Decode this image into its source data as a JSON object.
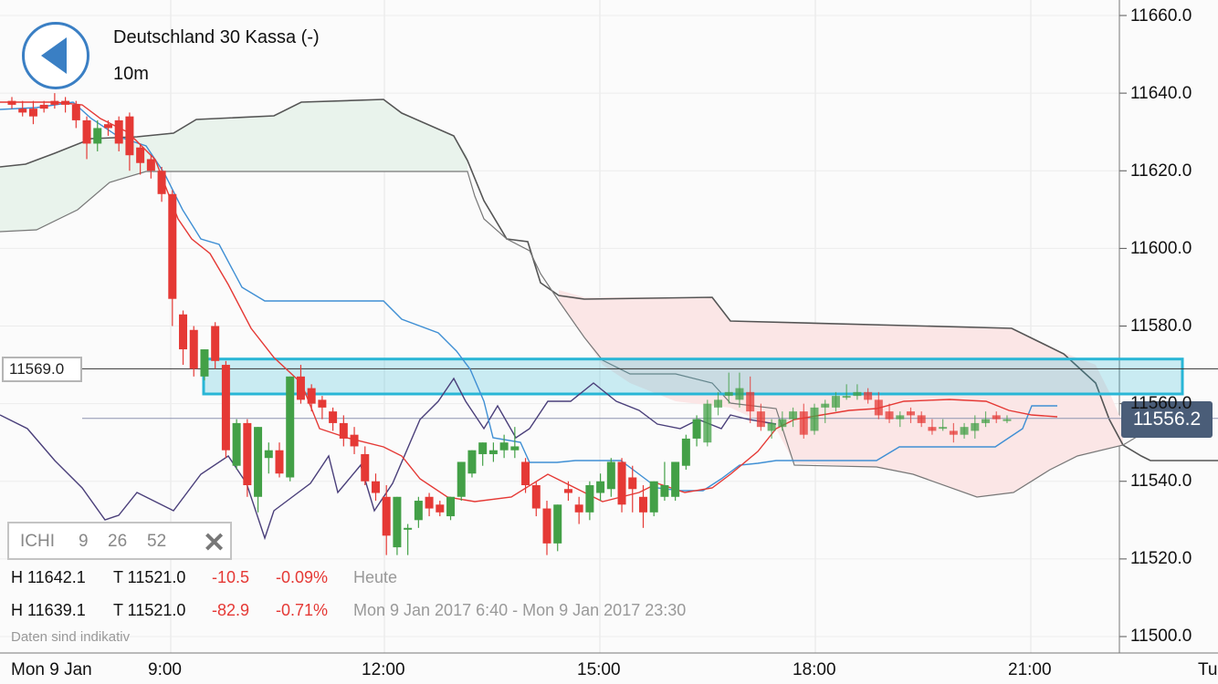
{
  "header": {
    "title": "Deutschland 30 Kassa (-)",
    "timeframe": "10m"
  },
  "indicator": {
    "name": "ICHI",
    "p1": "9",
    "p2": "26",
    "p3": "52"
  },
  "stats": [
    {
      "h": "H 11642.1",
      "t": "T 11521.0",
      "chg": "-10.5",
      "pct": "-0.09%",
      "period": "Heute"
    },
    {
      "h": "H 11639.1",
      "t": "T 11521.0",
      "chg": "-82.9",
      "pct": "-0.71%",
      "period": "Mon 9 Jan 2017 6:40 - Mon 9 Jan 2017 23:30"
    }
  ],
  "note": "Daten sind indikativ",
  "price_tags": {
    "left": "11569.0",
    "right": "11556.2"
  },
  "colors": {
    "up": "#43a047",
    "down": "#e53935",
    "tenkan": "#e53935",
    "kijun": "#3f8fd4",
    "chikou": "#4a3f7a",
    "span": "#555555",
    "zone": "#29b6d6",
    "cloud_bull": "#e9f3ec",
    "cloud_bear": "#fbe6e6"
  },
  "chart_data": {
    "type": "candlestick",
    "symbol": "Deutschland 30 Kassa (-)",
    "interval": "10m",
    "y_axis": {
      "ticks": [
        "11660.0",
        "11640.0",
        "11620.0",
        "11600.0",
        "11580.0",
        "11560.0",
        "11540.0",
        "11520.0",
        "11500.0"
      ],
      "ylim": [
        11497,
        11663
      ]
    },
    "x_axis": {
      "labels": [
        "Mon 9 Jan",
        "9:00",
        "12:00",
        "15:00",
        "18:00",
        "21:00",
        "Tu"
      ]
    },
    "horizontal_lines": [
      {
        "value": 11569.0
      },
      {
        "value": 11556.2
      }
    ],
    "zone": {
      "from": 11562.5,
      "to": 11571.5
    },
    "candles": [
      [
        11638,
        11639,
        11636,
        11637
      ],
      [
        11636,
        11638,
        11634,
        11635
      ],
      [
        11636,
        11638,
        11632,
        11634
      ],
      [
        11637,
        11638,
        11635,
        11636
      ],
      [
        11638,
        11640,
        11636,
        11637
      ],
      [
        11638,
        11639,
        11635,
        11637
      ],
      [
        11637,
        11638,
        11631,
        11633
      ],
      [
        11633,
        11634,
        11623,
        11627
      ],
      [
        11627,
        11633,
        11625,
        11631
      ],
      [
        11632,
        11633,
        11629,
        11631
      ],
      [
        11633,
        11634,
        11625,
        11627
      ],
      [
        11634,
        11635,
        11620,
        11624
      ],
      [
        11626,
        11627,
        11619,
        11622
      ],
      [
        11623,
        11624,
        11618,
        11620
      ],
      [
        11620,
        11621,
        11612,
        11614
      ],
      [
        11614,
        11615,
        11580,
        11587
      ],
      [
        11583,
        11584,
        11570,
        11574
      ],
      [
        11579,
        11580,
        11567,
        11569
      ],
      [
        11567,
        11574,
        11566,
        11574
      ],
      [
        11580,
        11581,
        11569,
        11571
      ],
      [
        11570,
        11571,
        11546,
        11548
      ],
      [
        11544,
        11556,
        11543,
        11555
      ],
      [
        11555,
        11556,
        11536,
        11539
      ],
      [
        11536,
        11554,
        11532,
        11554
      ],
      [
        11546,
        11550,
        11542,
        11548
      ],
      [
        11548,
        11550,
        11541,
        11542
      ],
      [
        11541,
        11567,
        11540,
        11567
      ],
      [
        11567,
        11570,
        11560,
        11561
      ],
      [
        11564,
        11565,
        11558,
        11560
      ],
      [
        11561,
        11562,
        11556,
        11559
      ],
      [
        11558,
        11559,
        11553,
        11555
      ],
      [
        11555,
        11557,
        11549,
        11551
      ],
      [
        11552,
        11554,
        11547,
        11549
      ],
      [
        11547,
        11549,
        11539,
        11540
      ],
      [
        11540,
        11542,
        11535,
        11537
      ],
      [
        11536,
        11539,
        11521,
        11526
      ],
      [
        11523,
        11536,
        11521,
        11536
      ],
      [
        11528,
        11529,
        11521,
        11528
      ],
      [
        11530,
        11536,
        11528,
        11535
      ],
      [
        11536,
        11537,
        11531,
        11533
      ],
      [
        11534,
        11535,
        11531,
        11532
      ],
      [
        11531,
        11536,
        11530,
        11536
      ],
      [
        11536,
        11545,
        11535,
        11545
      ],
      [
        11542,
        11548,
        11541,
        11548
      ],
      [
        11547,
        11550,
        11544,
        11550
      ],
      [
        11547,
        11550,
        11545,
        11548
      ],
      [
        11548,
        11552,
        11546,
        11550
      ],
      [
        11548,
        11554,
        11546,
        11549
      ],
      [
        11545,
        11546,
        11537,
        11539
      ],
      [
        11539,
        11540,
        11531,
        11533
      ],
      [
        11533,
        11535,
        11521,
        11524
      ],
      [
        11524,
        11534,
        11522,
        11534
      ],
      [
        11538,
        11540,
        11535,
        11537
      ],
      [
        11534,
        11536,
        11529,
        11532
      ],
      [
        11532,
        11540,
        11530,
        11539
      ],
      [
        11537,
        11542,
        11535,
        11540
      ],
      [
        11538,
        11546,
        11536,
        11545
      ],
      [
        11545,
        11546,
        11532,
        11534
      ],
      [
        11541,
        11544,
        11532,
        11538
      ],
      [
        11536,
        11539,
        11528,
        11532
      ],
      [
        11532,
        11540,
        11531,
        11540
      ],
      [
        11536,
        11545,
        11535,
        11539
      ],
      [
        11536,
        11545,
        11535,
        11545
      ],
      [
        11544,
        11552,
        11543,
        11551
      ],
      [
        11551,
        11557,
        11549,
        11556
      ],
      [
        11550,
        11561,
        11549,
        11560
      ],
      [
        11559,
        11563,
        11557,
        11561
      ],
      [
        11562,
        11568,
        11560,
        11563
      ],
      [
        11561,
        11568,
        11559,
        11564
      ],
      [
        11563,
        11567,
        11555,
        11558
      ],
      [
        11558,
        11560,
        11553,
        11554
      ],
      [
        11553,
        11556,
        11551,
        11555
      ],
      [
        11554,
        11558,
        11553,
        11556
      ],
      [
        11556,
        11559,
        11554,
        11558
      ],
      [
        11558,
        11560,
        11551,
        11552
      ],
      [
        11553,
        11560,
        11552,
        11559
      ],
      [
        11559,
        11561,
        11555,
        11560
      ],
      [
        11559,
        11563,
        11558,
        11562
      ],
      [
        11562,
        11565,
        11561,
        11562
      ],
      [
        11562,
        11565,
        11561,
        11563
      ],
      [
        11563,
        11564,
        11560,
        11561
      ],
      [
        11561,
        11563,
        11556,
        11557
      ],
      [
        11558,
        11560,
        11555,
        11556
      ],
      [
        11556,
        11558,
        11554,
        11557
      ],
      [
        11558,
        11559,
        11555,
        11557
      ],
      [
        11557,
        11558,
        11554,
        11555
      ],
      [
        11554,
        11556,
        11552,
        11553
      ],
      [
        11554,
        11556,
        11553,
        11554
      ],
      [
        11553,
        11555,
        11550,
        11552
      ],
      [
        11552,
        11555,
        11551,
        11554
      ],
      [
        11553,
        11557,
        11551,
        11555
      ],
      [
        11555,
        11558,
        11554,
        11556
      ],
      [
        11557,
        11558,
        11555,
        11556
      ],
      [
        11556,
        11557,
        11555,
        11556
      ]
    ]
  }
}
